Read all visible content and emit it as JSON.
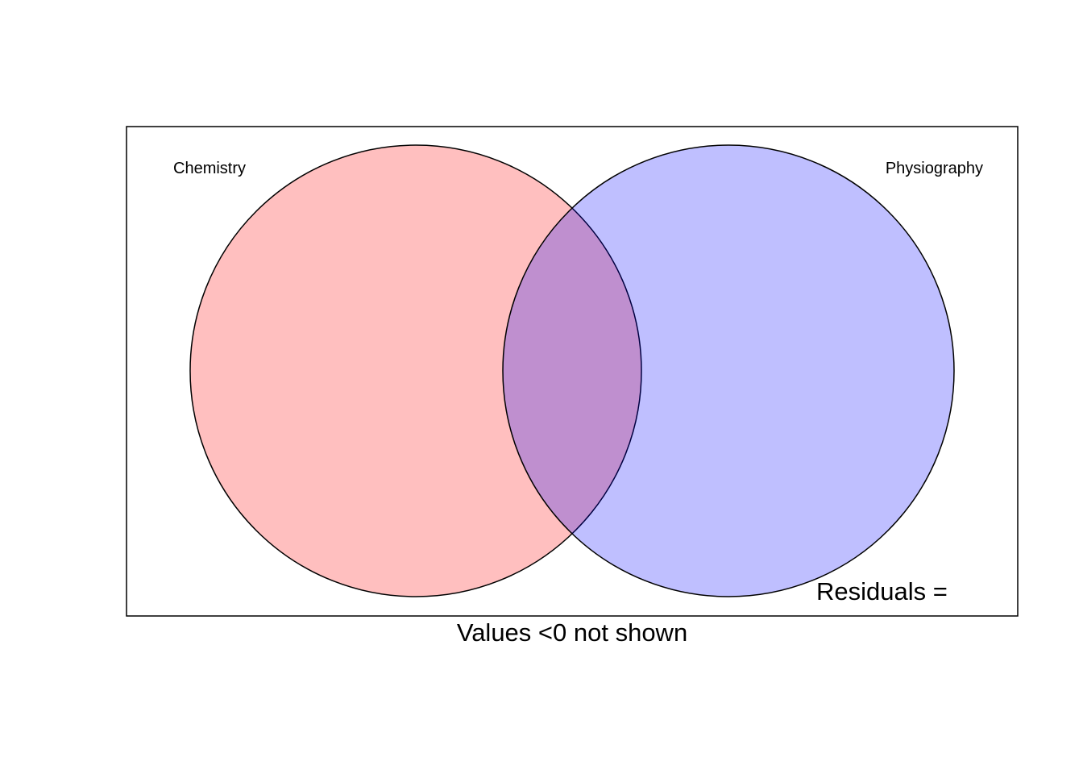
{
  "sets": [
    {
      "name": "Chemistry",
      "fill": "#ff0000",
      "fill_opacity": 0.25
    },
    {
      "name": "Physiography",
      "fill": "#0000ff",
      "fill_opacity": 0.25
    }
  ],
  "residuals_label": "Residuals =",
  "footnote": "Values <0 not shown",
  "colors": {
    "border": "#000000",
    "background": "#ffffff"
  }
}
